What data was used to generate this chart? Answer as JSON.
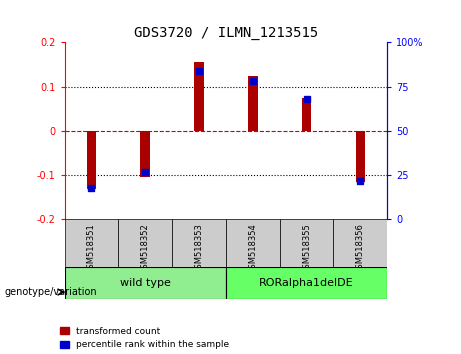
{
  "title": "GDS3720 / ILMN_1213515",
  "samples": [
    "GSM518351",
    "GSM518352",
    "GSM518353",
    "GSM518354",
    "GSM518355",
    "GSM518356"
  ],
  "red_values": [
    -0.13,
    -0.105,
    0.155,
    0.125,
    0.075,
    -0.115
  ],
  "blue_values_percent": [
    18,
    27,
    84,
    78,
    68,
    22
  ],
  "ylim_left": [
    -0.2,
    0.2
  ],
  "ylim_right": [
    0,
    100
  ],
  "yticks_left": [
    -0.2,
    -0.1,
    0,
    0.1,
    0.2
  ],
  "yticks_right": [
    0,
    25,
    50,
    75,
    100
  ],
  "groups": [
    {
      "label": "wild type",
      "indices": [
        0,
        1,
        2
      ],
      "color": "#90EE90"
    },
    {
      "label": "RORalpha1delDE",
      "indices": [
        3,
        4,
        5
      ],
      "color": "#66FF66"
    }
  ],
  "bar_width": 0.18,
  "red_color": "#AA0000",
  "blue_color": "#0000CC",
  "zero_line_color": "#CC0000",
  "grid_color": "#000000",
  "bg_plot": "#FFFFFF",
  "bg_xtick": "#CCCCCC",
  "genotype_label": "genotype/variation",
  "legend_red": "transformed count",
  "legend_blue": "percentile rank within the sample"
}
